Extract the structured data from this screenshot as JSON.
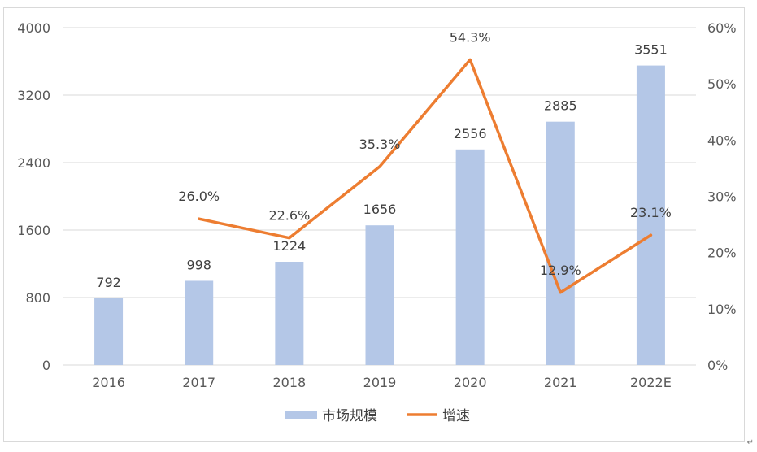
{
  "chart_data": {
    "type": "bar",
    "categories": [
      "2016",
      "2017",
      "2018",
      "2019",
      "2020",
      "2021",
      "2022E"
    ],
    "series": [
      {
        "name": "市场规模",
        "type": "bar",
        "axis": "left",
        "color": "#b4c7e7",
        "values": [
          792,
          998,
          1224,
          1656,
          2556,
          2885,
          3551
        ],
        "labels": [
          "792",
          "998",
          "1224",
          "1656",
          "2556",
          "2885",
          "3551"
        ]
      },
      {
        "name": "增速",
        "type": "line",
        "axis": "right",
        "color": "#ed7d31",
        "values": [
          null,
          26.0,
          22.6,
          35.3,
          54.3,
          12.9,
          23.1
        ],
        "labels": [
          "",
          "26.0%",
          "22.6%",
          "35.3%",
          "54.3%",
          "12.9%",
          "23.1%"
        ]
      }
    ],
    "y_left": {
      "min": 0,
      "max": 4000,
      "ticks": [
        "0",
        "800",
        "1600",
        "2400",
        "3200",
        "4000"
      ]
    },
    "y_right": {
      "min": 0,
      "max": 60,
      "ticks": [
        "0%",
        "10%",
        "20%",
        "30%",
        "40%",
        "50%",
        "60%"
      ]
    },
    "grid": true,
    "legend_position": "bottom"
  },
  "corner_mark": "↵"
}
